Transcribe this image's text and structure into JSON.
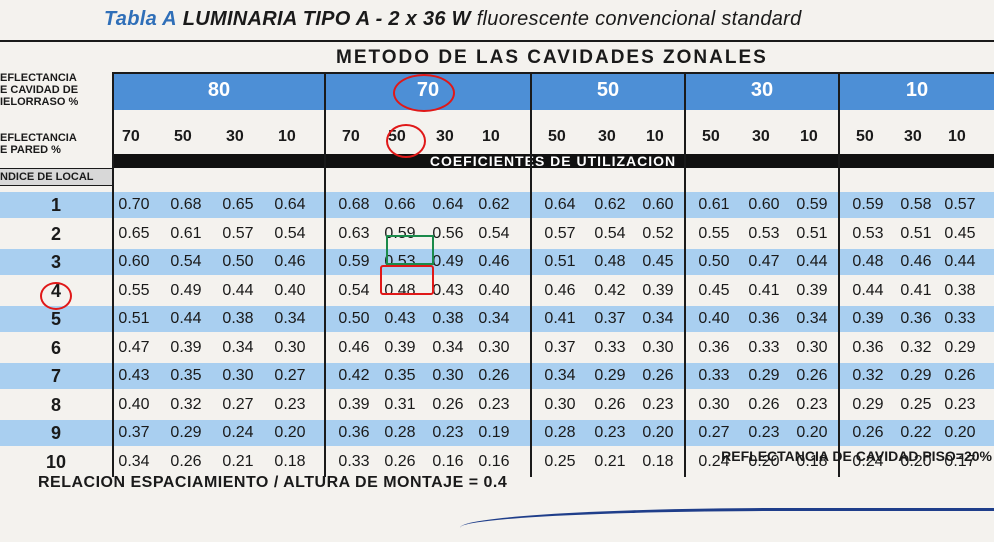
{
  "title": {
    "prefix": "Tabla A",
    "main": "LUMINARIA TIPO A - 2 x 36 W",
    "suffix": "fluorescente convencional standard"
  },
  "labels": {
    "ceiling": [
      "EFLECTANCIA",
      "E CAVIDAD DE",
      "IELORRASO %"
    ],
    "wall": [
      "EFLECTANCIA",
      "E PARED %"
    ],
    "index": "NDICE DE LOCAL",
    "metodo": "METODO DE LAS CAVIDADES ZONALES",
    "coef": "COEFICIENTES DE UTILIZACION",
    "floor": "REFLECTANCIA DE CAVIDAD PISO=20%",
    "spacing": "RELACION ESPACIAMIENTO / ALTURA DE MONTAJE  =  0.4"
  },
  "ceiling_groups": [
    "80",
    "70",
    "50",
    "30",
    "10"
  ],
  "wall_values": [
    [
      "70",
      "50",
      "30",
      "10"
    ],
    [
      "70",
      "50",
      "30",
      "10"
    ],
    [
      "50",
      "30",
      "10"
    ],
    [
      "50",
      "30",
      "10"
    ],
    [
      "50",
      "30",
      "10"
    ]
  ],
  "index_labels": [
    "1",
    "2",
    "3",
    "4",
    "5",
    "6",
    "7",
    "8",
    "9",
    "10"
  ],
  "rows": [
    [
      [
        "0.70",
        "0.68",
        "0.65",
        "0.64"
      ],
      [
        "0.68",
        "0.66",
        "0.64",
        "0.62"
      ],
      [
        "0.64",
        "0.62",
        "0.60"
      ],
      [
        "0.61",
        "0.60",
        "0.59"
      ],
      [
        "0.59",
        "0.58",
        "0.57"
      ]
    ],
    [
      [
        "0.65",
        "0.61",
        "0.57",
        "0.54"
      ],
      [
        "0.63",
        "0.59",
        "0.56",
        "0.54"
      ],
      [
        "0.57",
        "0.54",
        "0.52"
      ],
      [
        "0.55",
        "0.53",
        "0.51"
      ],
      [
        "0.53",
        "0.51",
        "0.45"
      ]
    ],
    [
      [
        "0.60",
        "0.54",
        "0.50",
        "0.46"
      ],
      [
        "0.59",
        "0.53",
        "0.49",
        "0.46"
      ],
      [
        "0.51",
        "0.48",
        "0.45"
      ],
      [
        "0.50",
        "0.47",
        "0.44"
      ],
      [
        "0.48",
        "0.46",
        "0.44"
      ]
    ],
    [
      [
        "0.55",
        "0.49",
        "0.44",
        "0.40"
      ],
      [
        "0.54",
        "0.48",
        "0.43",
        "0.40"
      ],
      [
        "0.46",
        "0.42",
        "0.39"
      ],
      [
        "0.45",
        "0.41",
        "0.39"
      ],
      [
        "0.44",
        "0.41",
        "0.38"
      ]
    ],
    [
      [
        "0.51",
        "0.44",
        "0.38",
        "0.34"
      ],
      [
        "0.50",
        "0.43",
        "0.38",
        "0.34"
      ],
      [
        "0.41",
        "0.37",
        "0.34"
      ],
      [
        "0.40",
        "0.36",
        "0.34"
      ],
      [
        "0.39",
        "0.36",
        "0.33"
      ]
    ],
    [
      [
        "0.47",
        "0.39",
        "0.34",
        "0.30"
      ],
      [
        "0.46",
        "0.39",
        "0.34",
        "0.30"
      ],
      [
        "0.37",
        "0.33",
        "0.30"
      ],
      [
        "0.36",
        "0.33",
        "0.30"
      ],
      [
        "0.36",
        "0.32",
        "0.29"
      ]
    ],
    [
      [
        "0.43",
        "0.35",
        "0.30",
        "0.27"
      ],
      [
        "0.42",
        "0.35",
        "0.30",
        "0.26"
      ],
      [
        "0.34",
        "0.29",
        "0.26"
      ],
      [
        "0.33",
        "0.29",
        "0.26"
      ],
      [
        "0.32",
        "0.29",
        "0.26"
      ]
    ],
    [
      [
        "0.40",
        "0.32",
        "0.27",
        "0.23"
      ],
      [
        "0.39",
        "0.31",
        "0.26",
        "0.23"
      ],
      [
        "0.30",
        "0.26",
        "0.23"
      ],
      [
        "0.30",
        "0.26",
        "0.23"
      ],
      [
        "0.29",
        "0.25",
        "0.23"
      ]
    ],
    [
      [
        "0.37",
        "0.29",
        "0.24",
        "0.20"
      ],
      [
        "0.36",
        "0.28",
        "0.23",
        "0.19"
      ],
      [
        "0.28",
        "0.23",
        "0.20"
      ],
      [
        "0.27",
        "0.23",
        "0.20"
      ],
      [
        "0.26",
        "0.22",
        "0.20"
      ]
    ],
    [
      [
        "0.34",
        "0.26",
        "0.21",
        "0.18"
      ],
      [
        "0.33",
        "0.26",
        "0.16",
        "0.16"
      ],
      [
        "0.25",
        "0.21",
        "0.18"
      ],
      [
        "0.24",
        "0.20",
        "0.18"
      ],
      [
        "0.24",
        "0.20",
        "0.17"
      ]
    ]
  ],
  "colors": {
    "header_blue": "#4d8fd6",
    "row_shade": "#a9cff0",
    "mark_red": "#e01818",
    "mark_green": "#1a8a4a"
  }
}
